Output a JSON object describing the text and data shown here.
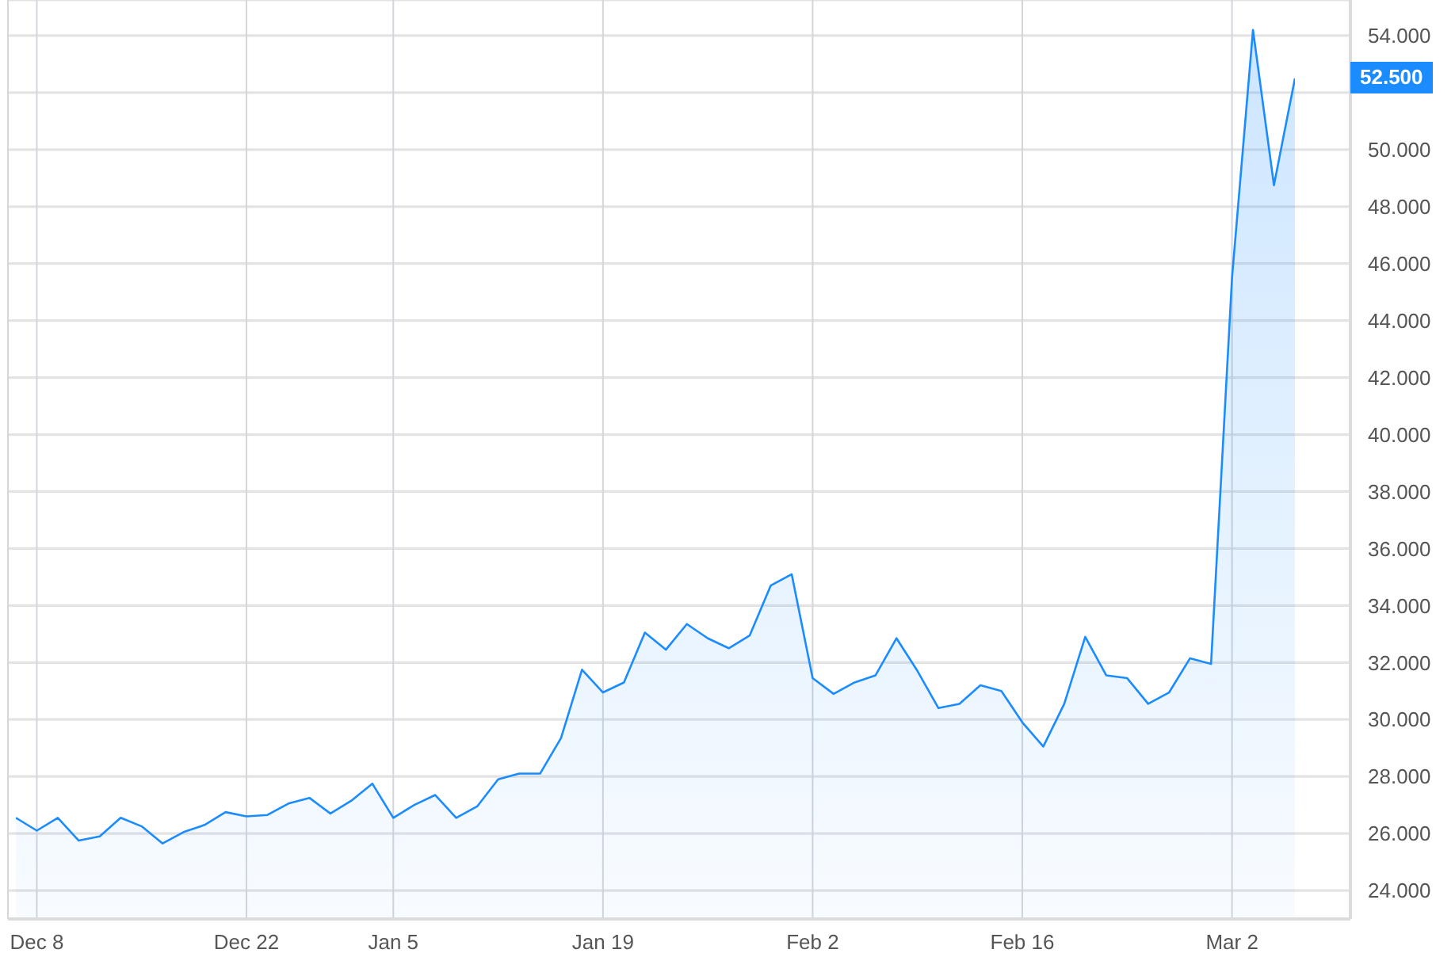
{
  "chart_data": {
    "type": "area",
    "color": "#1a8cff",
    "marker": "none",
    "grid": true,
    "categories": [
      null,
      "Dec 8",
      null,
      null,
      null,
      null,
      null,
      null,
      null,
      null,
      null,
      "Dec 22",
      null,
      null,
      null,
      null,
      null,
      null,
      "Jan 5",
      null,
      null,
      null,
      null,
      null,
      null,
      null,
      null,
      null,
      "Jan 19",
      null,
      null,
      null,
      null,
      null,
      null,
      null,
      null,
      null,
      "Feb 2",
      null,
      null,
      null,
      null,
      null,
      null,
      null,
      null,
      null,
      "Feb 16",
      null,
      null,
      null,
      null,
      null,
      null,
      null,
      null,
      null,
      "Mar 2",
      null,
      null,
      null
    ],
    "values": [
      26550,
      26100,
      26550,
      25750,
      25900,
      26550,
      26250,
      25650,
      26050,
      26300,
      26750,
      26600,
      26650,
      27050,
      27250,
      26700,
      27150,
      27750,
      26550,
      27000,
      27350,
      26550,
      26950,
      27900,
      28100,
      28100,
      29350,
      31750,
      30950,
      31300,
      33050,
      32450,
      33350,
      32850,
      32500,
      32950,
      34700,
      35100,
      31450,
      30900,
      31300,
      31550,
      32850,
      31700,
      30400,
      30550,
      31200,
      31000,
      29900,
      29050,
      30550,
      32900,
      31550,
      31450,
      30550,
      30950,
      32150,
      31950,
      45500,
      54200,
      48750,
      52500
    ],
    "ylim": [
      23000,
      55250
    ],
    "yticks": [
      {
        "value": 24000,
        "label": "24.000"
      },
      {
        "value": 26000,
        "label": "26.000"
      },
      {
        "value": 28000,
        "label": "28.000"
      },
      {
        "value": 30000,
        "label": "30.000"
      },
      {
        "value": 32000,
        "label": "32.000"
      },
      {
        "value": 34000,
        "label": "34.000"
      },
      {
        "value": 36000,
        "label": "36.000"
      },
      {
        "value": 38000,
        "label": "38.000"
      },
      {
        "value": 40000,
        "label": "40.000"
      },
      {
        "value": 42000,
        "label": "42.000"
      },
      {
        "value": 44000,
        "label": "44.000"
      },
      {
        "value": 46000,
        "label": "46.000"
      },
      {
        "value": 48000,
        "label": "48.000"
      },
      {
        "value": 50000,
        "label": "50.000"
      },
      {
        "value": 52000,
        "label": null
      },
      {
        "value": 54000,
        "label": "54.000"
      }
    ],
    "annotations": [
      "52.500"
    ]
  }
}
